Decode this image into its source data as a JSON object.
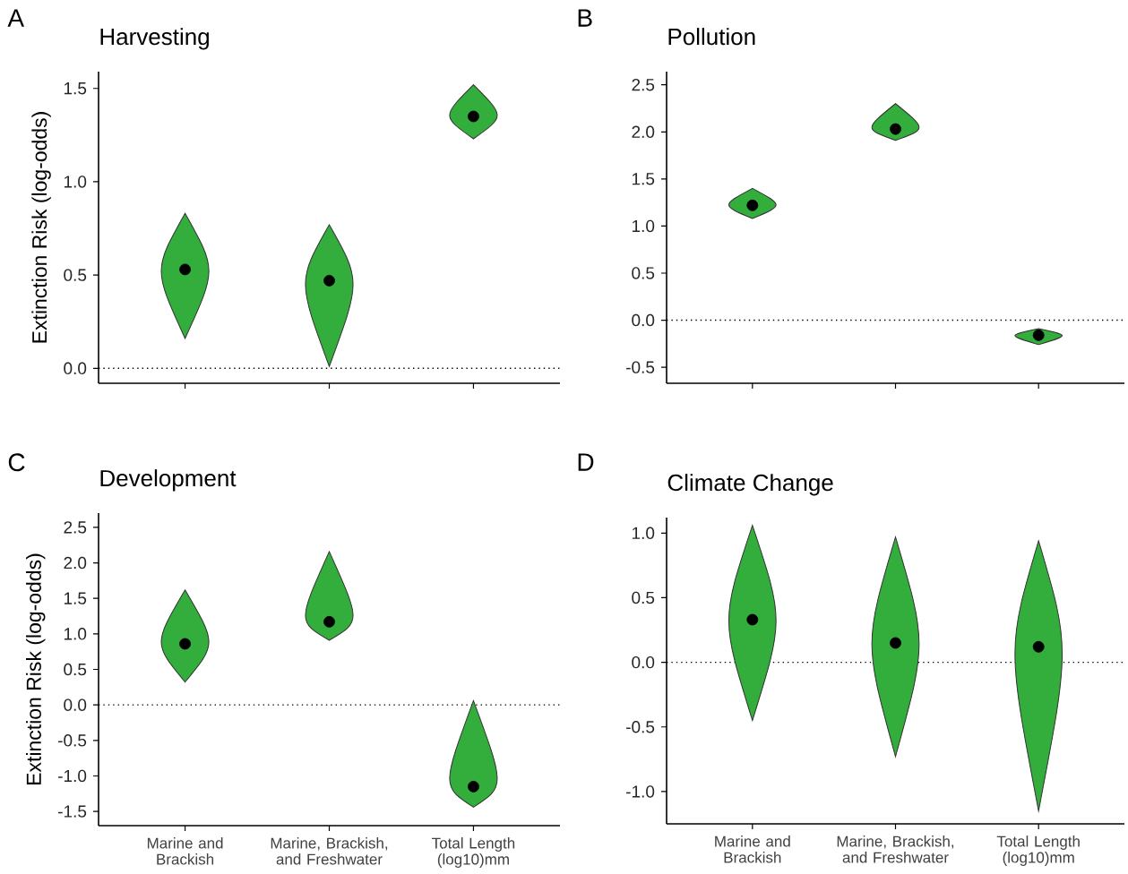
{
  "chart_data": [
    {
      "type": "scatter",
      "title": "Harvesting",
      "ylabel": "Extinction Risk (log-odds)",
      "annotations": [
        "A"
      ],
      "categories": [
        null,
        null,
        null
      ],
      "tick_labels": "y",
      "marker": "circle",
      "series": [
        {
          "color": "#000000",
          "values": [
            0.53,
            0.47,
            1.35
          ],
          "errors": [
            [
              0.16,
              0.83
            ],
            [
              0.01,
              0.77
            ],
            [
              1.23,
              1.52
            ]
          ]
        }
      ],
      "ylim": [
        -0.08,
        1.59
      ],
      "yticks": [
        {
          "value": 0,
          "label": "0.0"
        },
        {
          "value": 0.5,
          "label": "0.5"
        },
        {
          "value": 1,
          "label": "1.0"
        },
        {
          "value": 1.5,
          "label": "1.5"
        }
      ],
      "ref_lines": [
        {
          "axis": "y",
          "value": 0,
          "line_style": "dotted"
        }
      ]
    },
    {
      "type": "scatter",
      "title": "Pollution",
      "annotations": [
        "B"
      ],
      "categories": [
        null,
        null,
        null
      ],
      "tick_labels": "y",
      "marker": "circle",
      "series": [
        {
          "color": "#000000",
          "values": [
            1.22,
            2.03,
            -0.16
          ],
          "errors": [
            [
              1.08,
              1.4
            ],
            [
              1.91,
              2.3
            ],
            [
              -0.26,
              -0.09
            ]
          ]
        }
      ],
      "ylim": [
        -0.67,
        2.64
      ],
      "yticks": [
        {
          "value": -0.5,
          "label": "-0.5"
        },
        {
          "value": 0,
          "label": "0.0"
        },
        {
          "value": 0.5,
          "label": "0.5"
        },
        {
          "value": 1,
          "label": "1.0"
        },
        {
          "value": 1.5,
          "label": "1.5"
        },
        {
          "value": 2,
          "label": "2.0"
        },
        {
          "value": 2.5,
          "label": "2.5"
        }
      ],
      "ref_lines": [
        {
          "axis": "y",
          "value": 0,
          "line_style": "dotted"
        }
      ]
    },
    {
      "type": "scatter",
      "title": "Development",
      "ylabel": "Extinction Risk (log-odds)",
      "annotations": [
        "C"
      ],
      "categories": [
        "Marine and Brackish",
        "Marine, Brackish, and Freshwater",
        "Total Length (log10)mm"
      ],
      "marker": "circle",
      "series": [
        {
          "color": "#000000",
          "values": [
            0.86,
            1.17,
            -1.15
          ],
          "errors": [
            [
              0.32,
              1.62
            ],
            [
              0.91,
              2.16
            ],
            [
              -1.44,
              0.06
            ]
          ]
        }
      ],
      "ylim": [
        -1.7,
        2.7
      ],
      "yticks": [
        {
          "value": -1.5,
          "label": "-1.5"
        },
        {
          "value": -1,
          "label": "-1.0"
        },
        {
          "value": -0.5,
          "label": "-0.5"
        },
        {
          "value": 0,
          "label": "0.0"
        },
        {
          "value": 0.5,
          "label": "0.5"
        },
        {
          "value": 1,
          "label": "1.0"
        },
        {
          "value": 1.5,
          "label": "1.5"
        },
        {
          "value": 2,
          "label": "2.0"
        },
        {
          "value": 2.5,
          "label": "2.5"
        }
      ],
      "ref_lines": [
        {
          "axis": "y",
          "value": 0,
          "line_style": "dotted"
        }
      ]
    },
    {
      "type": "scatter",
      "title": "Climate Change",
      "annotations": [
        "D"
      ],
      "categories": [
        "Marine and Brackish",
        "Marine, Brackish, and Freshwater",
        "Total Length (log10)mm"
      ],
      "marker": "circle",
      "series": [
        {
          "color": "#000000",
          "values": [
            0.33,
            0.15,
            0.12
          ],
          "errors": [
            [
              -0.45,
              1.06
            ],
            [
              -0.73,
              0.97
            ],
            [
              -1.15,
              0.94
            ]
          ]
        }
      ],
      "ylim": [
        -1.25,
        1.12
      ],
      "yticks": [
        {
          "value": -1,
          "label": "-1.0"
        },
        {
          "value": -0.5,
          "label": "-0.5"
        },
        {
          "value": 0,
          "label": "0.0"
        },
        {
          "value": 0.5,
          "label": "0.5"
        },
        {
          "value": 1,
          "label": "1.0"
        }
      ],
      "ref_lines": [
        {
          "axis": "y",
          "value": 0,
          "line_style": "dotted"
        }
      ]
    }
  ]
}
